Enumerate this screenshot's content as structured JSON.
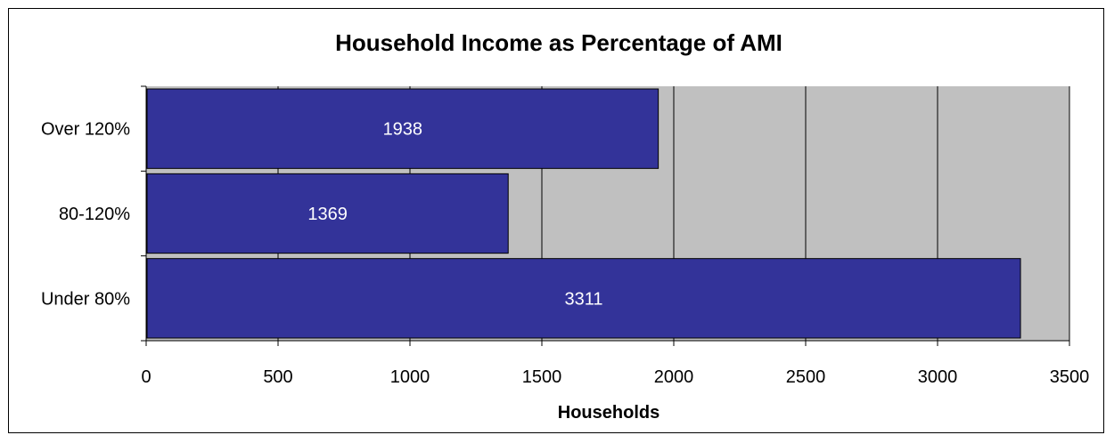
{
  "chart_data": {
    "type": "bar",
    "orientation": "horizontal",
    "title": "Household Income as Percentage of AMI",
    "categories": [
      "Over 120%",
      "80-120%",
      "Under 80%"
    ],
    "values": [
      1938,
      1369,
      3311
    ],
    "data_labels": [
      "1938",
      "1369",
      "3311"
    ],
    "xlabel": "Households",
    "ylabel": "",
    "xlim": [
      0,
      3500
    ],
    "xticks": [
      "0",
      "500",
      "1000",
      "1500",
      "2000",
      "2500",
      "3000",
      "3500"
    ],
    "grid": "vertical",
    "legend": "none",
    "colors": {
      "bar": "#333399",
      "plot_background": "#c0c0c0",
      "grid": "#000000",
      "data_label": "#ffffff"
    }
  }
}
